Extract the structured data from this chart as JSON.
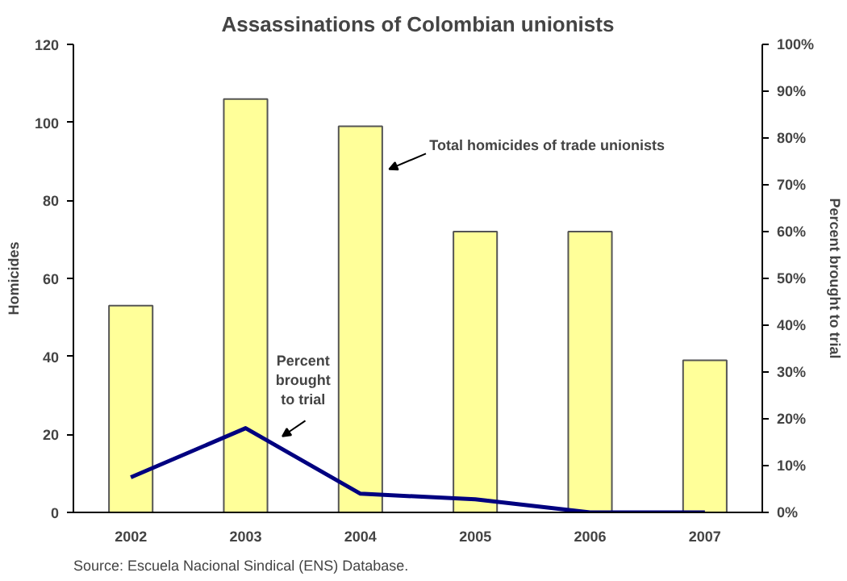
{
  "chart_data": {
    "type": "bar",
    "title": "Assassinations of Colombian unionists",
    "categories": [
      "2002",
      "2003",
      "2004",
      "2005",
      "2006",
      "2007"
    ],
    "series": [
      {
        "name": "Total homicides of trade unionists",
        "color": "#ffff99",
        "values": [
          53,
          106,
          99,
          72,
          72,
          39
        ]
      },
      {
        "name": "Percent brought to trial",
        "type": "line",
        "axis": "y2",
        "color": "#000080",
        "values": [
          7.5,
          18,
          4,
          2.8,
          0,
          0
        ]
      }
    ],
    "ylabel": "Homicides",
    "y2label": "Percent brought to trial",
    "ylim": [
      0,
      120
    ],
    "yticks": [
      0,
      20,
      40,
      60,
      80,
      100,
      120
    ],
    "y2lim": [
      0,
      100
    ],
    "y2ticks": [
      {
        "value": 0,
        "label": "0%"
      },
      {
        "value": 10,
        "label": "10%"
      },
      {
        "value": 20,
        "label": "20%"
      },
      {
        "value": 30,
        "label": "30%"
      },
      {
        "value": 40,
        "label": "40%"
      },
      {
        "value": 50,
        "label": "50%"
      },
      {
        "value": 60,
        "label": "60%"
      },
      {
        "value": 70,
        "label": "70%"
      },
      {
        "value": 80,
        "label": "80%"
      },
      {
        "value": 90,
        "label": "90%"
      },
      {
        "value": 100,
        "label": "100%"
      }
    ],
    "grid": false,
    "legend": false,
    "annotations": [
      "Source: Escuela Nacional Sindical (ENS) Database."
    ]
  }
}
